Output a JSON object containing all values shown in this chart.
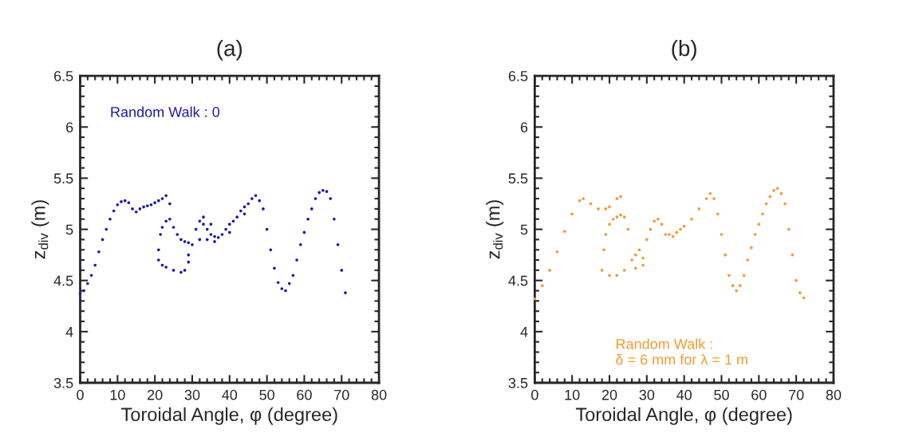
{
  "chart_data": [
    {
      "type": "scatter",
      "title": "(a)",
      "xlabel": "Toroidal Angle, φ (degree)",
      "ylabel": "z$_{div}$ (m)",
      "annotations": [
        "Random Walk : 0"
      ],
      "xlim": [
        0,
        80
      ],
      "xticks": [
        0,
        10,
        20,
        30,
        40,
        50,
        60,
        70,
        80
      ],
      "ylim": [
        3.5,
        6.5
      ],
      "yticks": [
        3.5,
        4,
        4.5,
        5,
        5.5,
        6,
        6.5
      ],
      "marker": "circle",
      "grid": false,
      "series": [
        {
          "color": "#1a1aa6",
          "x": [
            0,
            1,
            2,
            3,
            4,
            5,
            6,
            7,
            8,
            9,
            10,
            11,
            12,
            13,
            14,
            15,
            16,
            17,
            18,
            19,
            20,
            21,
            22,
            23,
            24,
            21,
            21,
            21.5,
            22,
            23,
            24,
            25,
            26,
            27,
            28,
            29,
            22,
            23,
            25,
            27,
            28,
            29,
            29,
            30,
            31,
            32,
            33,
            34,
            35,
            36,
            37,
            38,
            39,
            40,
            41,
            42,
            43,
            44,
            45,
            46,
            47,
            48,
            49,
            50,
            51,
            52,
            53,
            54,
            55,
            56,
            57,
            58,
            59,
            60,
            61,
            62,
            63,
            64,
            65,
            66,
            67,
            68,
            69,
            70,
            71,
            32,
            34,
            36,
            33,
            35,
            40,
            44
          ],
          "values": [
            4.37,
            4.4,
            4.47,
            4.55,
            4.65,
            4.78,
            4.9,
            5.0,
            5.1,
            5.18,
            5.24,
            5.27,
            5.28,
            5.26,
            5.2,
            5.17,
            5.2,
            5.22,
            5.23,
            5.24,
            5.26,
            5.28,
            5.3,
            5.33,
            5.25,
            4.7,
            4.8,
            4.95,
            5.02,
            5.08,
            5.1,
            5.02,
            4.95,
            4.9,
            4.88,
            4.87,
            4.65,
            4.63,
            4.6,
            4.58,
            4.6,
            4.68,
            4.75,
            4.85,
            5.0,
            5.08,
            5.05,
            5.0,
            4.95,
            4.93,
            4.92,
            4.95,
            5.0,
            5.05,
            5.08,
            5.12,
            5.18,
            5.22,
            5.25,
            5.3,
            5.33,
            5.28,
            5.2,
            5.0,
            4.8,
            4.62,
            4.48,
            4.42,
            4.4,
            4.47,
            4.55,
            4.7,
            4.85,
            4.97,
            5.1,
            5.2,
            5.3,
            5.36,
            5.38,
            5.37,
            5.3,
            5.1,
            4.85,
            4.6,
            4.38,
            4.9,
            4.9,
            4.88,
            5.12,
            5.05,
            4.97,
            5.15
          ]
        }
      ]
    },
    {
      "type": "scatter",
      "title": "(b)",
      "xlabel": "Toroidal Angle, φ (degree)",
      "ylabel": "z$_{div}$ (m)",
      "annotations": [
        "Random Walk :\nδ = 6 mm for λ = 1 m"
      ],
      "xlim": [
        0,
        80
      ],
      "xticks": [
        0,
        10,
        20,
        30,
        40,
        50,
        60,
        70,
        80
      ],
      "ylim": [
        3.5,
        6.5
      ],
      "yticks": [
        3.5,
        4,
        4.5,
        5,
        5.5,
        6,
        6.5
      ],
      "marker": "circle",
      "grid": false,
      "series": [
        {
          "color": "#f39a30",
          "x": [
            0,
            2,
            4,
            6,
            8,
            10,
            12,
            13,
            15,
            17,
            19,
            20,
            18,
            18.5,
            19,
            20,
            21,
            22,
            23,
            24,
            25,
            22,
            23,
            20,
            22,
            24,
            26,
            27,
            28,
            29,
            27,
            29,
            30,
            31,
            32,
            33,
            34,
            35,
            36,
            37,
            38,
            39,
            40,
            42,
            44,
            46,
            47,
            48,
            49,
            50,
            51,
            52,
            53,
            54,
            55,
            56,
            57,
            58,
            59,
            60,
            61,
            62,
            63,
            64,
            65,
            66,
            67,
            68,
            69,
            70,
            71,
            72
          ],
          "values": [
            4.32,
            4.45,
            4.6,
            4.78,
            4.98,
            5.15,
            5.28,
            5.3,
            5.25,
            5.2,
            5.2,
            5.22,
            4.6,
            4.8,
            4.95,
            5.05,
            5.1,
            5.12,
            5.14,
            5.12,
            5.0,
            5.3,
            5.32,
            4.55,
            4.55,
            4.6,
            4.7,
            4.75,
            4.8,
            4.72,
            4.62,
            4.65,
            4.9,
            5.0,
            5.08,
            5.1,
            5.05,
            4.95,
            4.95,
            4.93,
            4.97,
            5.0,
            5.03,
            5.1,
            5.2,
            5.3,
            5.35,
            5.3,
            5.15,
            4.95,
            4.75,
            4.55,
            4.45,
            4.4,
            4.45,
            4.55,
            4.7,
            4.82,
            4.95,
            5.05,
            5.15,
            5.25,
            5.32,
            5.38,
            5.4,
            5.35,
            5.25,
            5.0,
            4.75,
            4.5,
            4.38,
            4.33
          ]
        }
      ]
    }
  ]
}
